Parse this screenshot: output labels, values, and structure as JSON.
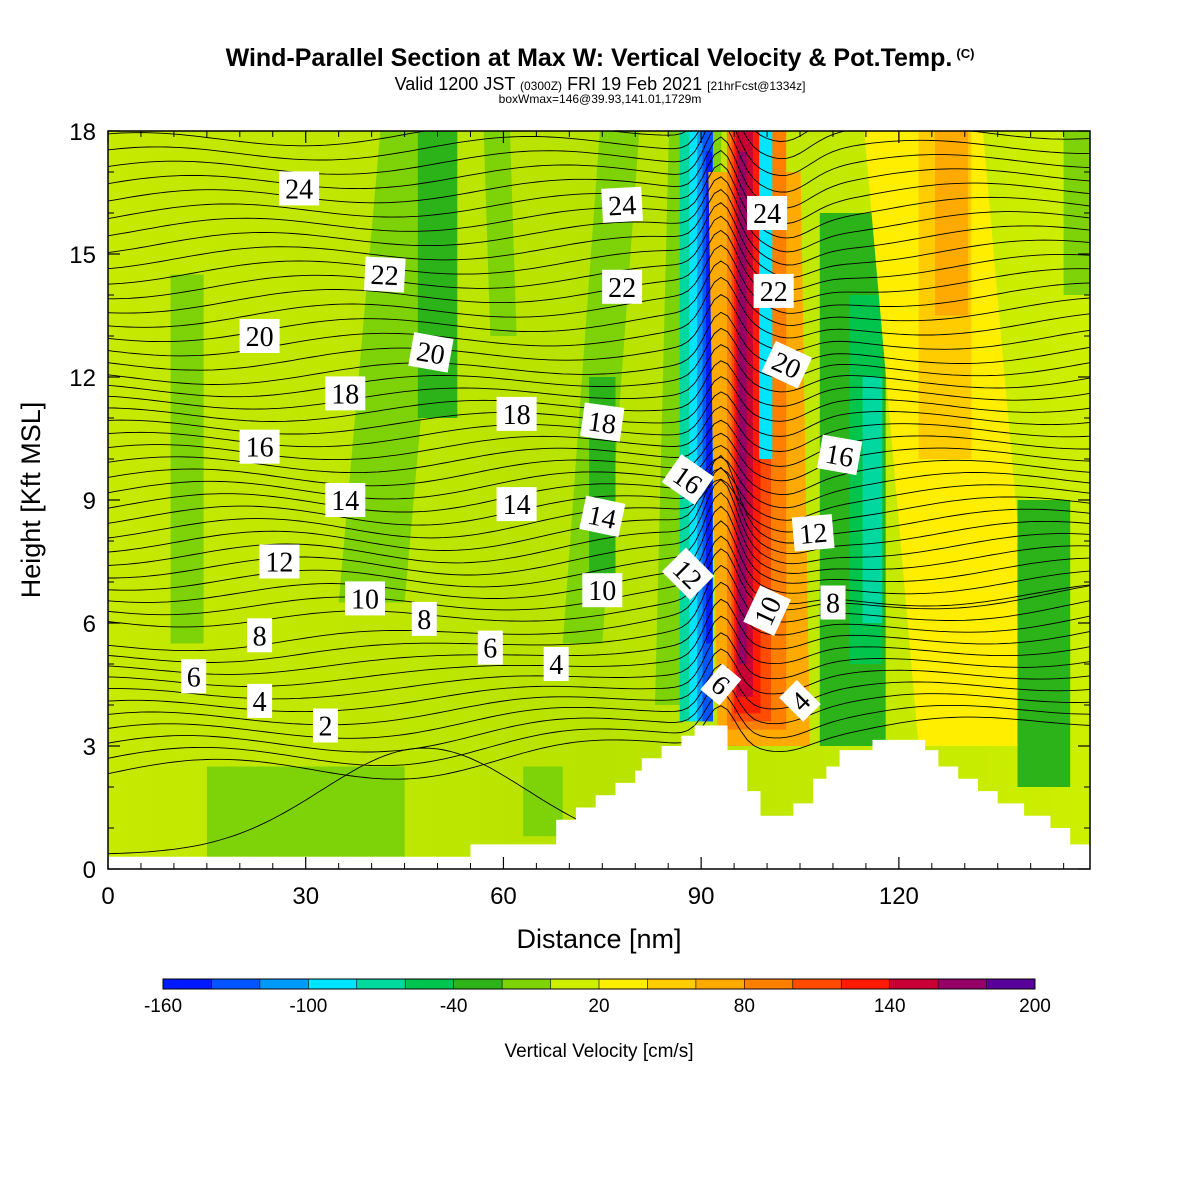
{
  "title": {
    "main": "Wind-Parallel Section at Max W: Vertical Velocity & Pot.Temp.",
    "copyright": "(C)",
    "valid_prefix": "Valid 1200 JST",
    "valid_z": "(0300Z)",
    "valid_date": "FRI 19 Feb 2021",
    "forecast": "[21hrFcst@1334z]",
    "box": "boxWmax=146@39.93,141.01,1729m"
  },
  "chart_data": {
    "type": "contour",
    "xlabel": "Distance [nm]",
    "ylabel": "Height [Kft MSL]",
    "xlim": [
      0,
      149
    ],
    "ylim": [
      0,
      18
    ],
    "x_ticks": [
      "0",
      "30",
      "60",
      "90",
      "120"
    ],
    "y_ticks": [
      "0",
      "3",
      "6",
      "9",
      "12",
      "15",
      "18"
    ],
    "x_tick_values": [
      0,
      30,
      60,
      90,
      120
    ],
    "y_tick_values": [
      0,
      3,
      6,
      9,
      12,
      15,
      18
    ],
    "filled_field": "Vertical Velocity [cm/s]",
    "contour_field": "Potential Temperature",
    "colorbar": {
      "label": "Vertical Velocity [cm/s]",
      "tick_labels": [
        "-160",
        "-100",
        "-40",
        "20",
        "80",
        "140",
        "200"
      ],
      "colors": [
        "#0019ff",
        "#0055ff",
        "#0099ff",
        "#00e5ff",
        "#00d8a0",
        "#00c44b",
        "#2db31a",
        "#7ed308",
        "#cdef00",
        "#ffee00",
        "#ffcc00",
        "#ffaa00",
        "#ff7f00",
        "#ff4c00",
        "#ff1a00",
        "#c80033",
        "#940066",
        "#5a0099"
      ]
    },
    "terrain_profile": [
      [
        0,
        0.3
      ],
      [
        55,
        0.3
      ],
      [
        55,
        0.6
      ],
      [
        68,
        0.6
      ],
      [
        68,
        1.2
      ],
      [
        71,
        1.2
      ],
      [
        71,
        1.5
      ],
      [
        74,
        1.5
      ],
      [
        74,
        1.8
      ],
      [
        77,
        1.8
      ],
      [
        77,
        2.1
      ],
      [
        80,
        2.1
      ],
      [
        80,
        2.4
      ],
      [
        81,
        2.4
      ],
      [
        81,
        2.7
      ],
      [
        84,
        2.7
      ],
      [
        84,
        3.0
      ],
      [
        87,
        3.0
      ],
      [
        87,
        3.25
      ],
      [
        89,
        3.25
      ],
      [
        89,
        3.5
      ],
      [
        94,
        3.5
      ],
      [
        94,
        2.9
      ],
      [
        97,
        2.9
      ],
      [
        97,
        1.9
      ],
      [
        99,
        1.9
      ],
      [
        99,
        1.3
      ],
      [
        104,
        1.3
      ],
      [
        104,
        1.6
      ],
      [
        107,
        1.6
      ],
      [
        107,
        2.2
      ],
      [
        109,
        2.2
      ],
      [
        109,
        2.5
      ],
      [
        111,
        2.5
      ],
      [
        111,
        2.9
      ],
      [
        116,
        2.9
      ],
      [
        116,
        3.15
      ],
      [
        124,
        3.15
      ],
      [
        124,
        2.9
      ],
      [
        126,
        2.9
      ],
      [
        126,
        2.5
      ],
      [
        129,
        2.5
      ],
      [
        129,
        2.2
      ],
      [
        132,
        2.2
      ],
      [
        132,
        1.9
      ],
      [
        135,
        1.9
      ],
      [
        135,
        1.6
      ],
      [
        139,
        1.6
      ],
      [
        139,
        1.3
      ],
      [
        143,
        1.3
      ],
      [
        143,
        1.0
      ],
      [
        146,
        1.0
      ],
      [
        146,
        0.6
      ],
      [
        149,
        0.6
      ]
    ],
    "contour_labels": [
      {
        "text": "24",
        "x": 29,
        "y": 16.6,
        "angle": 0
      },
      {
        "text": "22",
        "x": 42,
        "y": 14.5,
        "angle": 3
      },
      {
        "text": "20",
        "x": 23,
        "y": 13.0,
        "angle": 0
      },
      {
        "text": "20",
        "x": 49,
        "y": 12.6,
        "angle": 10
      },
      {
        "text": "18",
        "x": 36,
        "y": 11.6,
        "angle": 0
      },
      {
        "text": "16",
        "x": 23,
        "y": 10.3,
        "angle": 0
      },
      {
        "text": "14",
        "x": 36,
        "y": 9.0,
        "angle": 0
      },
      {
        "text": "12",
        "x": 26,
        "y": 7.5,
        "angle": 0
      },
      {
        "text": "10",
        "x": 39,
        "y": 6.6,
        "angle": 0
      },
      {
        "text": "8",
        "x": 23,
        "y": 5.7,
        "angle": 0
      },
      {
        "text": "8",
        "x": 48,
        "y": 6.1,
        "angle": 0
      },
      {
        "text": "6",
        "x": 13,
        "y": 4.7,
        "angle": 0
      },
      {
        "text": "6",
        "x": 58,
        "y": 5.4,
        "angle": 0
      },
      {
        "text": "4",
        "x": 23,
        "y": 4.1,
        "angle": 0
      },
      {
        "text": "4",
        "x": 68,
        "y": 5.0,
        "angle": 0
      },
      {
        "text": "2",
        "x": 33,
        "y": 3.5,
        "angle": 0
      },
      {
        "text": "24",
        "x": 78,
        "y": 16.2,
        "angle": -3
      },
      {
        "text": "22",
        "x": 78,
        "y": 14.2,
        "angle": 0
      },
      {
        "text": "18",
        "x": 62,
        "y": 11.1,
        "angle": 0
      },
      {
        "text": "18",
        "x": 75,
        "y": 10.9,
        "angle": 8
      },
      {
        "text": "14",
        "x": 62,
        "y": 8.9,
        "angle": 0
      },
      {
        "text": "14",
        "x": 75,
        "y": 8.6,
        "angle": 12
      },
      {
        "text": "10",
        "x": 75,
        "y": 6.8,
        "angle": 0
      },
      {
        "text": "16",
        "x": 88,
        "y": 9.5,
        "angle": 35
      },
      {
        "text": "12",
        "x": 88,
        "y": 7.2,
        "angle": 45
      },
      {
        "text": "6",
        "x": 93,
        "y": 4.5,
        "angle": 40
      },
      {
        "text": "24",
        "x": 100,
        "y": 16.0,
        "angle": 0
      },
      {
        "text": "22",
        "x": 101,
        "y": 14.1,
        "angle": 0
      },
      {
        "text": "20",
        "x": 103,
        "y": 12.3,
        "angle": 25
      },
      {
        "text": "10",
        "x": 100,
        "y": 6.3,
        "angle": -65
      },
      {
        "text": "4",
        "x": 105,
        "y": 4.1,
        "angle": -45
      },
      {
        "text": "16",
        "x": 111,
        "y": 10.1,
        "angle": 10
      },
      {
        "text": "12",
        "x": 107,
        "y": 8.2,
        "angle": -5
      },
      {
        "text": "8",
        "x": 110,
        "y": 6.5,
        "angle": 0
      }
    ]
  }
}
